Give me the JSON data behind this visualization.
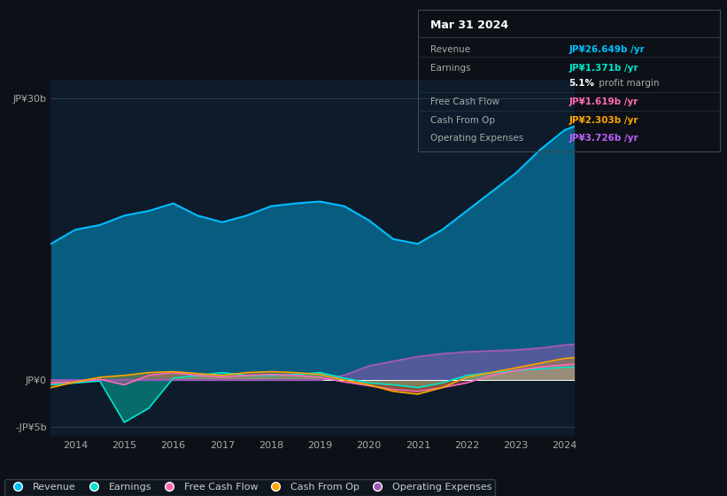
{
  "bg_color": "#0d1117",
  "plot_bg_color": "#0d1b2a",
  "title": "Mar 31 2024",
  "table_data": {
    "Revenue": {
      "value": "JP¥26.649b /yr",
      "color": "#00bfff"
    },
    "Earnings": {
      "value": "JP¥1.371b /yr",
      "color": "#00e5cc"
    },
    "profit_margin": "5.1% profit margin",
    "Free Cash Flow": {
      "value": "JP¥1.619b /yr",
      "color": "#ff69b4"
    },
    "Cash From Op": {
      "value": "JP¥2.303b /yr",
      "color": "#ffa500"
    },
    "Operating Expenses": {
      "value": "JP¥3.726b /yr",
      "color": "#bf5fff"
    }
  },
  "years": [
    2013.5,
    2014.0,
    2014.5,
    2015.0,
    2015.5,
    2016.0,
    2016.5,
    2017.0,
    2017.5,
    2018.0,
    2018.5,
    2019.0,
    2019.5,
    2020.0,
    2020.5,
    2021.0,
    2021.5,
    2022.0,
    2022.5,
    2023.0,
    2023.5,
    2024.0,
    2024.2
  ],
  "revenue": [
    14.5,
    16.0,
    16.5,
    17.5,
    18.0,
    18.8,
    17.5,
    16.8,
    17.5,
    18.5,
    18.8,
    19.0,
    18.5,
    17.0,
    15.0,
    14.5,
    16.0,
    18.0,
    20.0,
    22.0,
    24.5,
    26.6,
    27.0
  ],
  "earnings": [
    -0.5,
    -0.3,
    -0.1,
    -4.5,
    -3.0,
    0.2,
    0.5,
    0.8,
    0.5,
    0.5,
    0.6,
    0.8,
    0.2,
    -0.3,
    -0.5,
    -0.8,
    -0.3,
    0.5,
    0.8,
    1.0,
    1.2,
    1.37,
    1.4
  ],
  "free_cash_flow": [
    -0.3,
    -0.2,
    0.1,
    -0.5,
    0.5,
    0.8,
    0.5,
    0.3,
    0.5,
    0.6,
    0.5,
    0.3,
    -0.2,
    -0.6,
    -1.0,
    -1.2,
    -0.8,
    -0.3,
    0.5,
    1.0,
    1.4,
    1.619,
    1.7
  ],
  "cash_from_op": [
    -0.8,
    -0.2,
    0.3,
    0.5,
    0.8,
    0.9,
    0.7,
    0.5,
    0.8,
    0.9,
    0.8,
    0.6,
    0.0,
    -0.5,
    -1.2,
    -1.5,
    -0.8,
    0.3,
    0.8,
    1.3,
    1.8,
    2.303,
    2.4
  ],
  "operating_expenses": [
    0,
    0,
    0,
    0,
    0,
    0,
    0,
    0,
    0,
    0,
    0,
    0,
    0.5,
    1.5,
    2.0,
    2.5,
    2.8,
    3.0,
    3.1,
    3.2,
    3.4,
    3.726,
    3.8
  ],
  "ylim": [
    -6,
    32
  ],
  "yticks": [
    -5,
    0,
    30
  ],
  "ytick_labels": [
    "-JP¥5b",
    "JP¥0",
    "JP¥30b"
  ],
  "xtick_years": [
    2014,
    2015,
    2016,
    2017,
    2018,
    2019,
    2020,
    2021,
    2022,
    2023,
    2024
  ],
  "colors": {
    "revenue": "#00bfff",
    "earnings": "#00e5cc",
    "free_cash_flow": "#ff69b4",
    "cash_from_op": "#ffa500",
    "operating_expenses": "#9b59b6"
  },
  "legend_entries": [
    "Revenue",
    "Earnings",
    "Free Cash Flow",
    "Cash From Op",
    "Operating Expenses"
  ]
}
